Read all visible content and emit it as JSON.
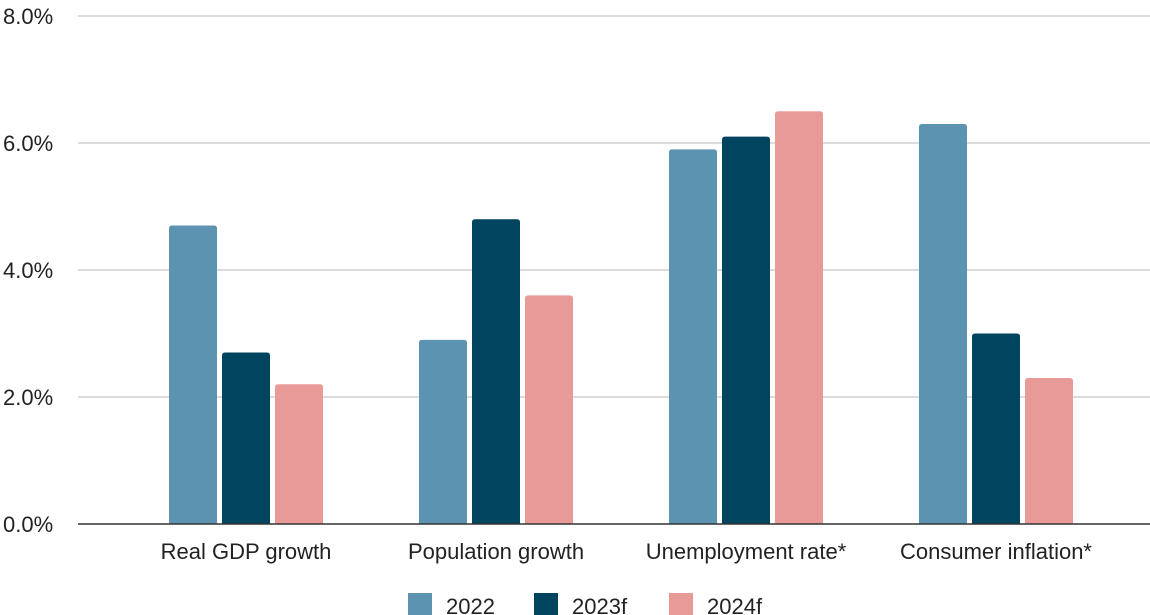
{
  "chart_data": {
    "type": "bar",
    "title": "",
    "xlabel": "",
    "ylabel": "",
    "categories": [
      "Real GDP growth",
      "Population growth",
      "Unemployment rate*",
      "Consumer inflation*"
    ],
    "series": [
      {
        "name": "2022",
        "color": "#5b93b0",
        "values": [
          4.7,
          2.9,
          5.9,
          6.3
        ]
      },
      {
        "name": "2023f",
        "color": "#00445f",
        "values": [
          2.7,
          4.8,
          6.1,
          3.0
        ]
      },
      {
        "name": "2024f",
        "color": "#e89a99",
        "values": [
          2.2,
          3.6,
          6.5,
          2.3
        ]
      }
    ],
    "ylim": [
      0,
      8
    ],
    "yticks": [
      0,
      2,
      4,
      6,
      8
    ],
    "ytick_labels": [
      "0.0%",
      "2.0%",
      "4.0%",
      "6.0%",
      "8.0%"
    ],
    "grid": true,
    "legend_position": "bottom"
  }
}
